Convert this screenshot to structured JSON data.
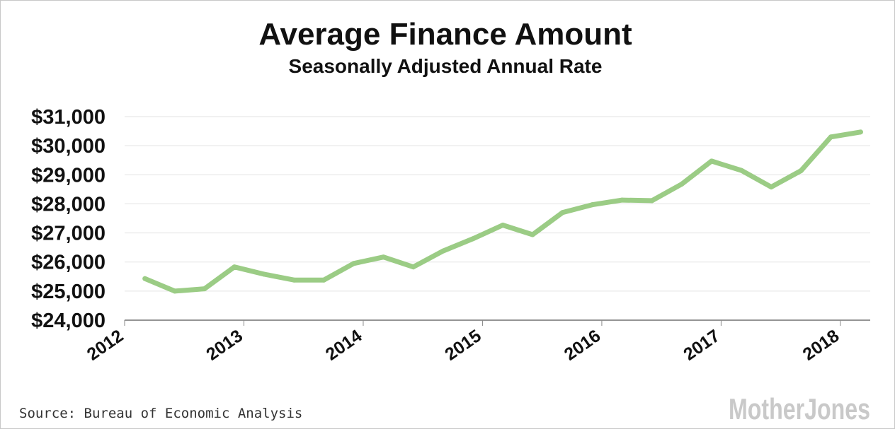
{
  "chart_data": {
    "type": "line",
    "title": "Average Finance Amount",
    "subtitle": "Seasonally Adjusted Annual Rate",
    "xlabel": "",
    "ylabel": "",
    "ylim": [
      24000,
      31000
    ],
    "xlim": [
      2012,
      2018.25
    ],
    "y_ticks": [
      24000,
      25000,
      26000,
      27000,
      28000,
      29000,
      30000,
      31000
    ],
    "y_tick_labels": [
      "$24,000",
      "$25,000",
      "$26,000",
      "$27,000",
      "$28,000",
      "$29,000",
      "$30,000",
      "$31,000"
    ],
    "x_ticks": [
      2012,
      2013,
      2014,
      2015,
      2016,
      2017,
      2018
    ],
    "x_tick_labels": [
      "2012",
      "2013",
      "2014",
      "2015",
      "2016",
      "2017",
      "2018"
    ],
    "grid": true,
    "series": [
      {
        "name": "Average Finance Amount",
        "color": "#9bcc85",
        "x": [
          2012.17,
          2012.42,
          2012.67,
          2012.92,
          2013.17,
          2013.42,
          2013.67,
          2013.92,
          2014.17,
          2014.42,
          2014.67,
          2014.92,
          2015.17,
          2015.42,
          2015.67,
          2015.92,
          2016.17,
          2016.42,
          2016.67,
          2016.92,
          2017.17,
          2017.42,
          2017.67,
          2017.92,
          2018.17
        ],
        "values": [
          25430,
          25000,
          25080,
          25830,
          25580,
          25380,
          25380,
          25950,
          26170,
          25830,
          26380,
          26800,
          27270,
          26940,
          27700,
          27970,
          28130,
          28110,
          28680,
          29470,
          29150,
          28580,
          29140,
          30300,
          30470
        ]
      }
    ]
  },
  "footer": {
    "source": "Source: Bureau of Economic Analysis",
    "brand": "MotherJones"
  }
}
